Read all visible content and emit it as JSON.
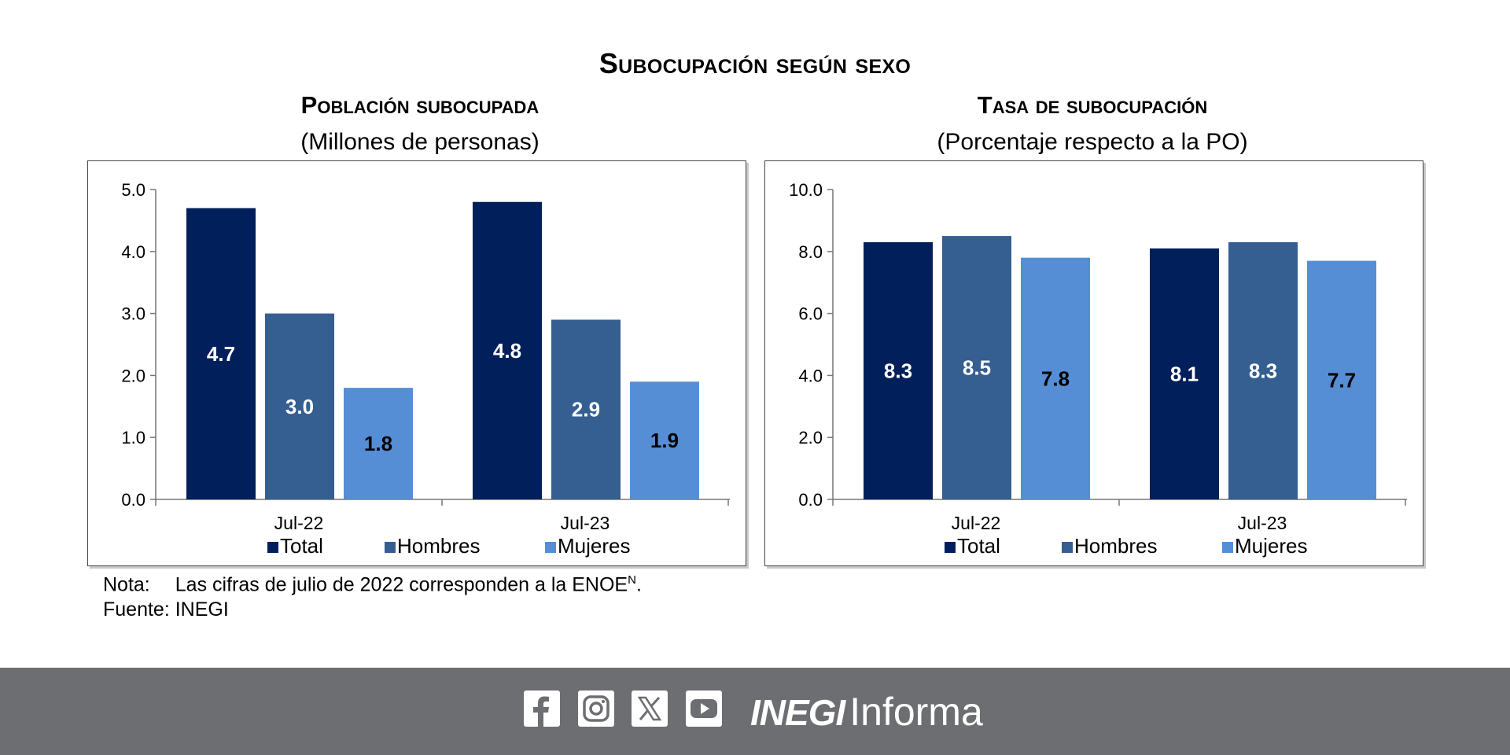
{
  "title": "Subocupación según sexo",
  "legend": [
    "Total",
    "Hombres",
    "Mujeres"
  ],
  "colors": {
    "Total": "#001f5b",
    "Hombres": "#355e91",
    "Mujeres": "#558ed5",
    "footer": "#6d6e71"
  },
  "chart_data": [
    {
      "type": "bar",
      "title": "Población subocupada",
      "subtitle": "(Millones de personas)",
      "categories": [
        "Jul-22",
        "Jul-23"
      ],
      "ylim": [
        0,
        5
      ],
      "ytick_labels": [
        "0.0",
        "1.0",
        "2.0",
        "3.0",
        "4.0",
        "5.0"
      ],
      "series": [
        {
          "name": "Total",
          "values": [
            4.7,
            4.8
          ],
          "labels": [
            "4.7",
            "4.8"
          ]
        },
        {
          "name": "Hombres",
          "values": [
            3.0,
            2.9
          ],
          "labels": [
            "3.0",
            "2.9"
          ]
        },
        {
          "name": "Mujeres",
          "values": [
            1.8,
            1.9
          ],
          "labels": [
            "1.8",
            "1.9"
          ]
        }
      ],
      "legend_position": "bottom"
    },
    {
      "type": "bar",
      "title": "Tasa de subocupación",
      "subtitle": "(Porcentaje respecto a la PO)",
      "categories": [
        "Jul-22",
        "Jul-23"
      ],
      "ylim": [
        0,
        10
      ],
      "ytick_labels": [
        "0.0",
        "2.0",
        "4.0",
        "6.0",
        "8.0",
        "10.0"
      ],
      "series": [
        {
          "name": "Total",
          "values": [
            8.3,
            8.1
          ],
          "labels": [
            "8.3",
            "8.1"
          ]
        },
        {
          "name": "Hombres",
          "values": [
            8.5,
            8.3
          ],
          "labels": [
            "8.5",
            "8.3"
          ]
        },
        {
          "name": "Mujeres",
          "values": [
            7.8,
            7.7
          ],
          "labels": [
            "7.8",
            "7.7"
          ]
        }
      ],
      "legend_position": "bottom"
    }
  ],
  "notes": {
    "nota_label": "Nota:",
    "nota_text": "Las cifras de julio de 2022 corresponden a la ENOE",
    "nota_sup": "N",
    "nota_end": ".",
    "fuente": "Fuente: INEGI"
  },
  "footer": {
    "icons": [
      "facebook-icon",
      "instagram-icon",
      "x-icon",
      "youtube-icon"
    ],
    "brand_strong": "INEGI",
    "brand_light": "Informa"
  }
}
